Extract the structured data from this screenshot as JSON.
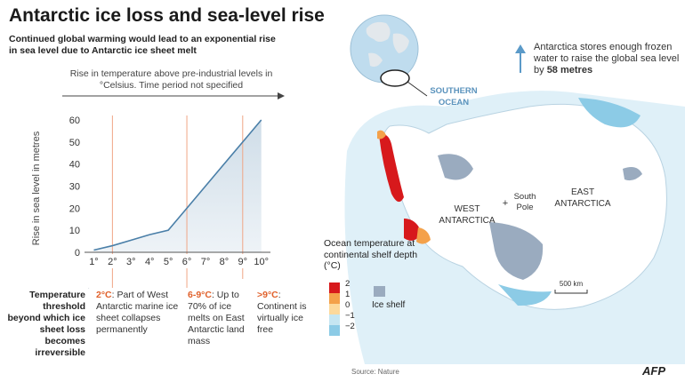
{
  "title": "Antarctic ice loss and sea-level rise",
  "subtitle": "Continued global warming would lead to an exponential rise in sea level due to Antarctic ice sheet melt",
  "chart_data": {
    "type": "area",
    "xlabel": "Rise in temperature above pre-industrial levels in °Celsius. Time period not specified",
    "ylabel": "Rise in sea level in metres",
    "categories": [
      "1°",
      "2°",
      "3°",
      "4°",
      "5°",
      "6°",
      "7°",
      "8°",
      "9°",
      "10°"
    ],
    "x": [
      1,
      2,
      3,
      4,
      5,
      6,
      7,
      8,
      9,
      10
    ],
    "values": [
      1,
      3,
      5.5,
      8,
      10,
      20,
      30,
      40,
      50,
      60
    ],
    "ylim": [
      0,
      60
    ],
    "yticks": [
      "0",
      "10",
      "20",
      "30",
      "40",
      "50",
      "60"
    ],
    "thresholds": [
      2,
      6,
      9
    ],
    "threshold_label": "Temperature threshold beyond which ice sheet loss becomes irreversible",
    "annotations": [
      {
        "range": "2°C",
        "text": ": Part of West Antarctic marine ice sheet collapses permanently"
      },
      {
        "range": "6-9°C",
        "text": ": Up to 70% of ice melts on East Antarctic land mass"
      },
      {
        "range": ">9°C",
        "text": ": Continent is virtually ice free"
      }
    ],
    "grid": false,
    "line_color": "#4a7fa8",
    "threshold_color": "#f0a585"
  },
  "map": {
    "ocean_label_1": "SOUTHERN",
    "ocean_label_2": "OCEAN",
    "west_label_1": "WEST",
    "west_label_2": "ANTARCTICA",
    "east_label_1": "EAST",
    "east_label_2": "ANTARCTICA",
    "pole_label_1": "South",
    "pole_label_2": "Pole",
    "scale_label": "500 km",
    "note_text": "Antarctica stores enough frozen water to raise the global sea level by ",
    "note_value": "58 metres",
    "legend_title": "Ocean temperature at continental shelf depth (°C)",
    "legend_ticks": [
      "2",
      "1",
      "0",
      "−1",
      "−2"
    ],
    "legend_colors": [
      "#d7191c",
      "#f4a14a",
      "#fdd99b",
      "#c6e6f2",
      "#8ccbe6"
    ],
    "ice_shelf_label": "Ice shelf",
    "ice_shelf_color": "#9aabbf"
  },
  "source": "Source: Nature",
  "credit": "AFP"
}
